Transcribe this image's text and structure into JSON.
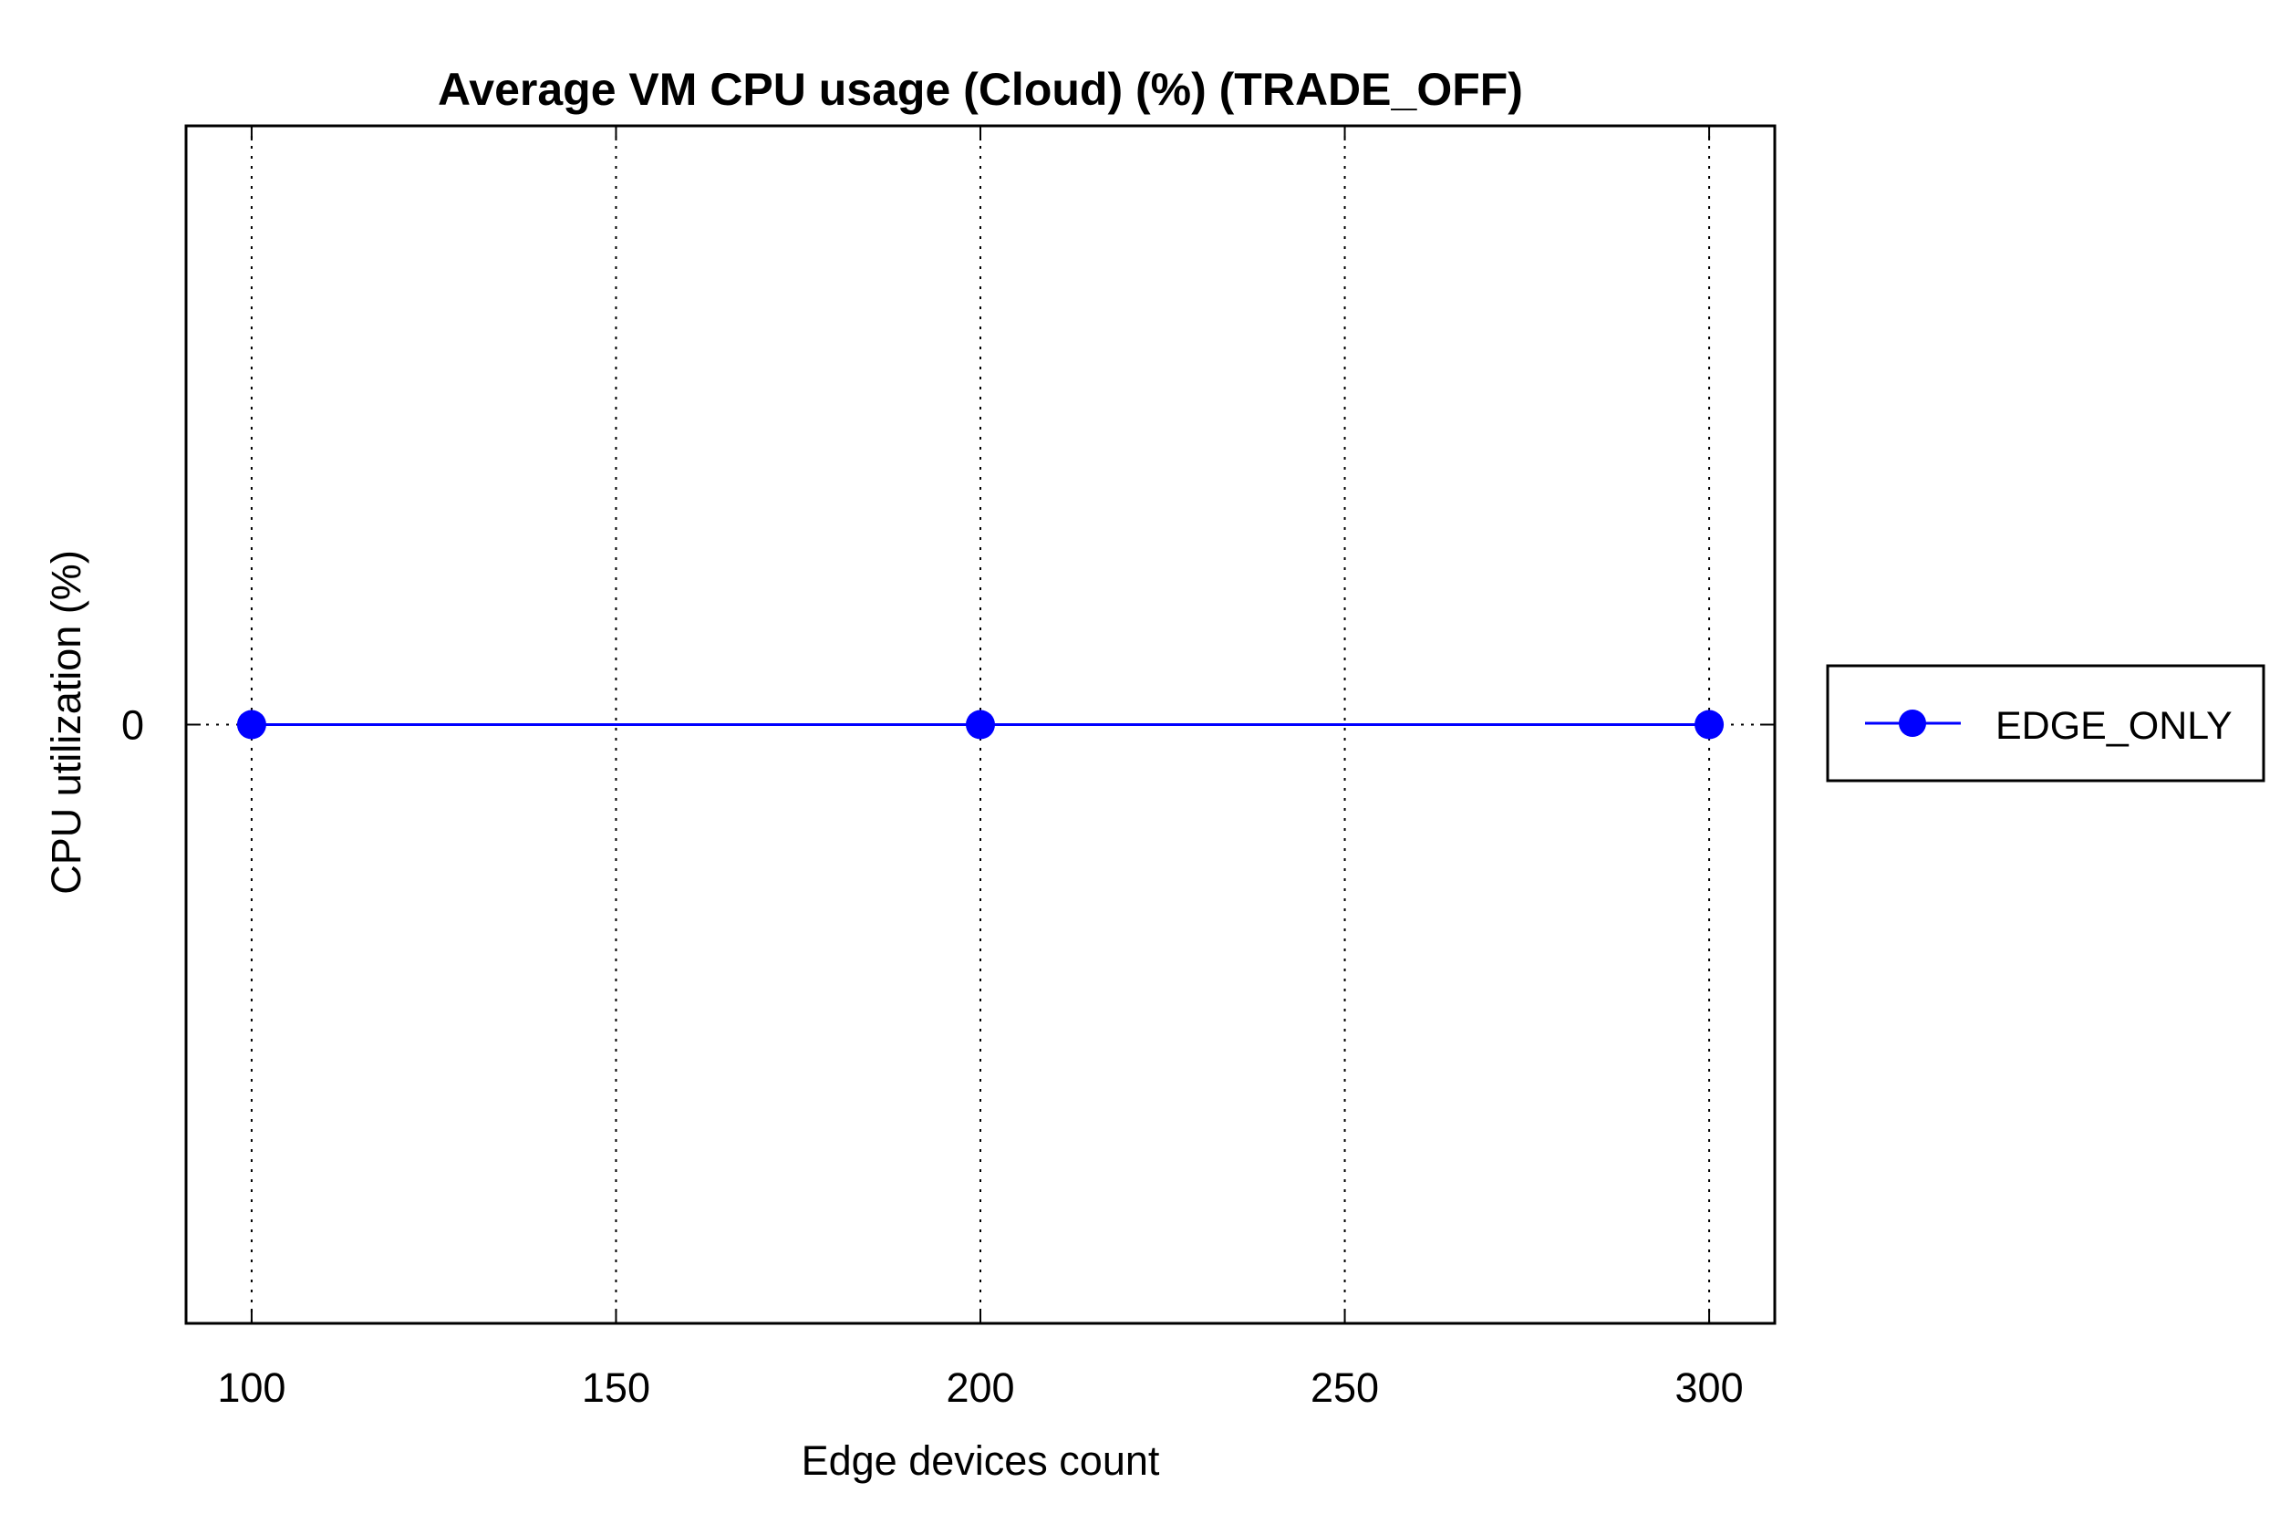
{
  "chart_data": {
    "type": "line",
    "title": "Average VM CPU usage (Cloud) (%) (TRADE_OFF)",
    "xlabel": "Edge devices count",
    "ylabel": "CPU utilization (%)",
    "xlim": [
      91,
      309
    ],
    "ylim": [
      -1,
      1
    ],
    "x_ticks": [
      100,
      150,
      200,
      250,
      300
    ],
    "x_tick_labels": [
      "100",
      "150",
      "200",
      "250",
      "300"
    ],
    "y_ticks": [
      0
    ],
    "y_tick_labels": [
      "0"
    ],
    "grid": true,
    "legend_position": "right",
    "series": [
      {
        "name": "EDGE_ONLY",
        "color": "#0000ff",
        "marker": "circle",
        "x": [
          100,
          200,
          300
        ],
        "y": [
          0,
          0,
          0
        ]
      }
    ]
  }
}
